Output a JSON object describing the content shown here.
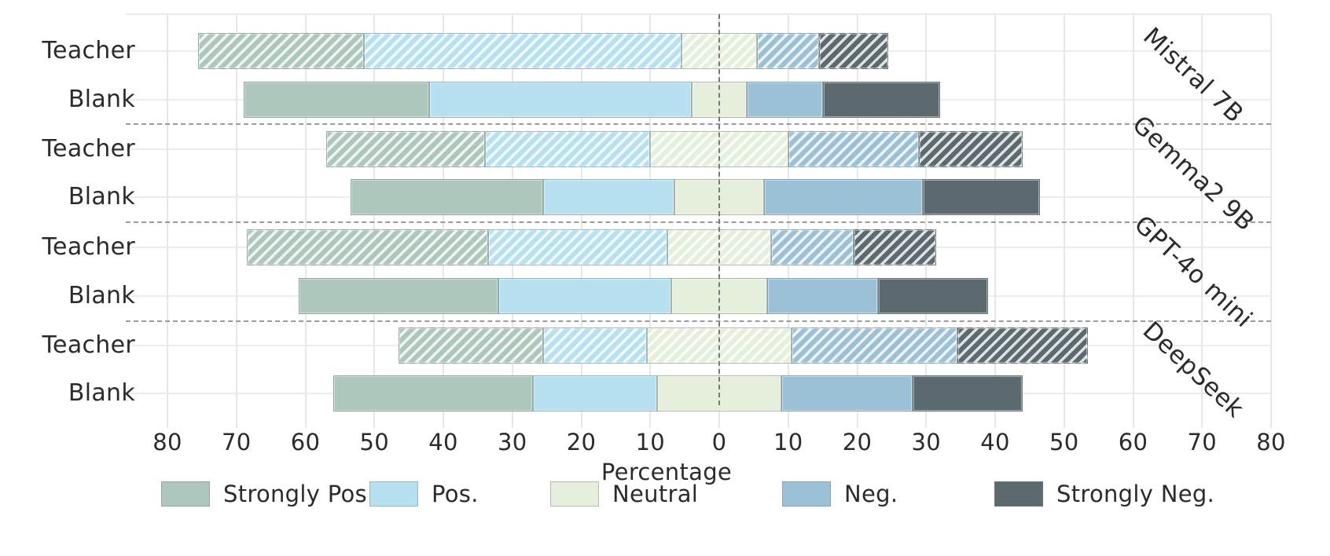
{
  "chart_data": {
    "type": "bar",
    "variant": "diverging-stacked-horizontal",
    "title": "",
    "xlabel": "Percentage",
    "x_range": [
      -80,
      80
    ],
    "x_ticks": [
      "80",
      "70",
      "60",
      "50",
      "40",
      "30",
      "20",
      "10",
      "0",
      "10",
      "20",
      "30",
      "40",
      "50",
      "60",
      "70",
      "80"
    ],
    "grid": true,
    "legend_position": "bottom",
    "center_category": "Neutral",
    "categories": [
      "Strongly Pos.",
      "Pos.",
      "Neutral",
      "Neg.",
      "Strongly Neg."
    ],
    "colors": [
      "#adc7bc",
      "#b7e0f0",
      "#e5efdb",
      "#9cc1d6",
      "#5c696e"
    ],
    "hatch_note": "Teacher rows use white diagonal hatching, Blank rows are solid",
    "groups": [
      {
        "model": "Mistral 7B",
        "rows": [
          {
            "label": "Teacher",
            "hatched": true,
            "values": [
              24,
              46,
              11,
              9,
              10
            ]
          },
          {
            "label": "Blank",
            "hatched": false,
            "values": [
              27,
              38,
              8,
              11,
              17
            ]
          }
        ]
      },
      {
        "model": "Gemma2 9B",
        "rows": [
          {
            "label": "Teacher",
            "hatched": true,
            "values": [
              23,
              24,
              20,
              19,
              15
            ]
          },
          {
            "label": "Blank",
            "hatched": false,
            "values": [
              28,
              19,
              13,
              23,
              17
            ]
          }
        ]
      },
      {
        "model": "GPT-4o mini",
        "rows": [
          {
            "label": "Teacher",
            "hatched": true,
            "values": [
              35,
              26,
              15,
              12,
              12
            ]
          },
          {
            "label": "Blank",
            "hatched": false,
            "values": [
              29,
              25,
              14,
              16,
              16
            ]
          }
        ]
      },
      {
        "model": "DeepSeek",
        "rows": [
          {
            "label": "Teacher",
            "hatched": true,
            "values": [
              21,
              15,
              21,
              24,
              19
            ]
          },
          {
            "label": "Blank",
            "hatched": false,
            "values": [
              29,
              18,
              18,
              19,
              16
            ]
          }
        ]
      }
    ],
    "style_colors": {
      "grid": "#e7e7e7",
      "zero_line": "#787878",
      "separator": "#9b9b9b",
      "text": "#2b2b2b",
      "background": "#ffffff"
    }
  }
}
